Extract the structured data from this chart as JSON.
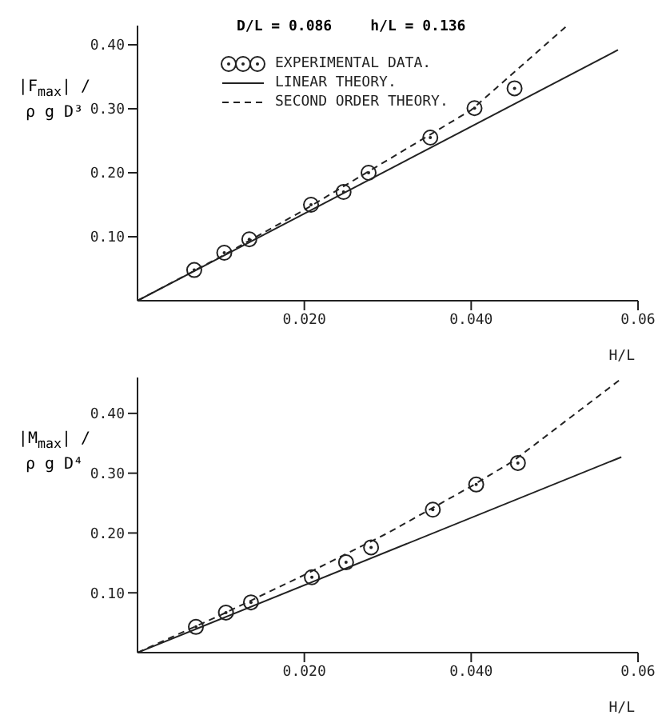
{
  "chart_data": [
    {
      "type": "line",
      "xlabel": "H/L",
      "ylabel": "|F$_{max}$| / ρ g D³",
      "annotations": [
        "D/L = 0.086",
        "h/L = 0.136"
      ],
      "xlim": [
        0,
        0.06
      ],
      "ylim": [
        0,
        0.43
      ],
      "xticks": [
        {
          "value": 0.02,
          "label": "0.020"
        },
        {
          "value": 0.04,
          "label": "0.040"
        },
        {
          "value": 0.06,
          "label": "0.06"
        }
      ],
      "yticks": [
        {
          "value": 0.1,
          "label": "0.10"
        },
        {
          "value": 0.2,
          "label": "0.20"
        },
        {
          "value": 0.3,
          "label": "0.30"
        },
        {
          "value": 0.4,
          "label": "0.40"
        }
      ],
      "legend": "top",
      "grid": false,
      "series": [
        {
          "name": "EXPERIMENTAL DATA.",
          "type": "scatter",
          "marker": "circle",
          "color": "#222222",
          "x": [
            0.0068,
            0.0104,
            0.0134,
            0.0208,
            0.0247,
            0.0277,
            0.0351,
            0.0404,
            0.0452
          ],
          "values": [
            0.048,
            0.075,
            0.096,
            0.15,
            0.17,
            0.2,
            0.255,
            0.301,
            0.332
          ]
        },
        {
          "name": "LINEAR THEORY.",
          "type": "line",
          "marker": "none",
          "line_style": "solid",
          "color": "#222222",
          "x": [
            0,
            0.0576
          ],
          "values": [
            0,
            0.392
          ]
        },
        {
          "name": "SECOND ORDER THEORY.",
          "type": "line",
          "marker": "none",
          "line_style": "dashed",
          "color": "#222222",
          "x": [
            0,
            0.01,
            0.02,
            0.03,
            0.04,
            0.0515
          ],
          "values": [
            0,
            0.069,
            0.142,
            0.22,
            0.298,
            0.43
          ]
        }
      ]
    },
    {
      "type": "line",
      "xlabel": "H/L",
      "ylabel": "|M$_{max}$| / ρ g D⁴",
      "xlim": [
        0,
        0.06
      ],
      "ylim": [
        0,
        0.46
      ],
      "xticks": [
        {
          "value": 0.02,
          "label": "0.020"
        },
        {
          "value": 0.04,
          "label": "0.040"
        },
        {
          "value": 0.06,
          "label": "0.06"
        }
      ],
      "yticks": [
        {
          "value": 0.1,
          "label": "0.10"
        },
        {
          "value": 0.2,
          "label": "0.20"
        },
        {
          "value": 0.3,
          "label": "0.30"
        },
        {
          "value": 0.4,
          "label": "0.40"
        }
      ],
      "grid": false,
      "series": [
        {
          "type": "scatter",
          "marker": "circle",
          "color": "#222222",
          "x": [
            0.007,
            0.0106,
            0.0136,
            0.0209,
            0.025,
            0.028,
            0.0354,
            0.0406,
            0.0456
          ],
          "values": [
            0.043,
            0.067,
            0.084,
            0.126,
            0.151,
            0.176,
            0.239,
            0.281,
            0.317
          ]
        },
        {
          "type": "line",
          "marker": "none",
          "line_style": "solid",
          "color": "#222222",
          "x": [
            0,
            0.058
          ],
          "values": [
            0,
            0.327
          ]
        },
        {
          "type": "line",
          "marker": "none",
          "line_style": "dashed",
          "color": "#222222",
          "x": [
            0,
            0.01,
            0.02,
            0.03,
            0.04,
            0.045,
            0.058
          ],
          "values": [
            0,
            0.063,
            0.13,
            0.2,
            0.278,
            0.32,
            0.458
          ]
        }
      ]
    }
  ]
}
